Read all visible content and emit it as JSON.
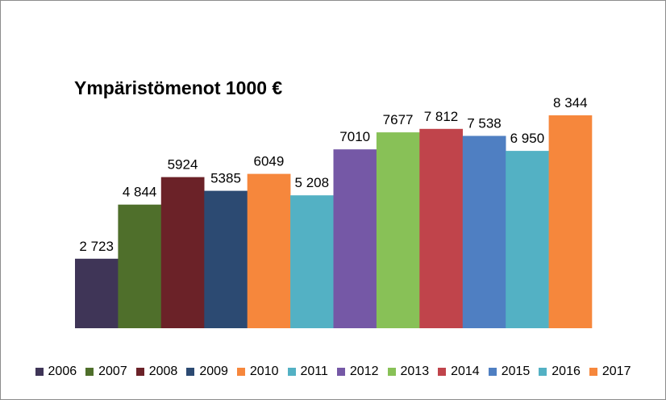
{
  "chart_data": {
    "type": "bar",
    "title": "Ympäristömenot 1000 €",
    "categories": [
      "2006",
      "2007",
      "2008",
      "2009",
      "2010",
      "2011",
      "2012",
      "2013",
      "2014",
      "2015",
      "2016",
      "2017"
    ],
    "values": [
      2723,
      4844,
      5924,
      5385,
      6049,
      5208,
      7010,
      7677,
      7812,
      7538,
      6950,
      8344
    ],
    "value_labels": [
      "2 723",
      "4 844",
      "5924",
      "5385",
      "6049",
      "5 208",
      "7010",
      "7677",
      "7 812",
      "7 538",
      "6 950",
      "8 344"
    ],
    "colors": [
      "#3f3557",
      "#4f6f2b",
      "#6b2228",
      "#2c4a72",
      "#f6873c",
      "#53b1c4",
      "#7558a6",
      "#88c157",
      "#c0444b",
      "#4f7fc2",
      "#53b1c4",
      "#f6873c"
    ],
    "xlabel": "",
    "ylabel": "",
    "ylim": [
      0,
      9000
    ],
    "grid": false,
    "legend_position": "bottom"
  }
}
